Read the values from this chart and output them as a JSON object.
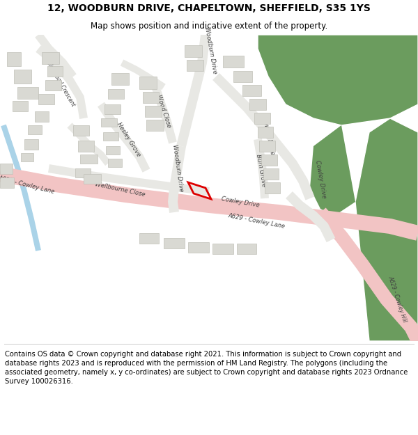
{
  "title": "12, WOODBURN DRIVE, CHAPELTOWN, SHEFFIELD, S35 1YS",
  "subtitle": "Map shows position and indicative extent of the property.",
  "footer": "Contains OS data © Crown copyright and database right 2021. This information is subject to Crown copyright and database rights 2023 and is reproduced with the permission of HM Land Registry. The polygons (including the associated geometry, namely x, y co-ordinates) are subject to Crown copyright and database rights 2023 Ordnance Survey 100026316.",
  "background_color": "#ffffff",
  "map_bg_color": "#f7f7f5",
  "green_color": "#6b9c5e",
  "green_dark": "#4e7a45",
  "road_major_color": "#f2c4c4",
  "road_major_center": "#f5d0d0",
  "road_minor_color": "#e8e8e4",
  "building_color": "#d9d9d3",
  "building_edge": "#c0c0b8",
  "water_color": "#aad3e8",
  "plot_color": "#dd0000",
  "title_fontsize": 10,
  "subtitle_fontsize": 8.5,
  "footer_fontsize": 7.2,
  "label_color": "#404040",
  "label_fontsize": 6.0
}
